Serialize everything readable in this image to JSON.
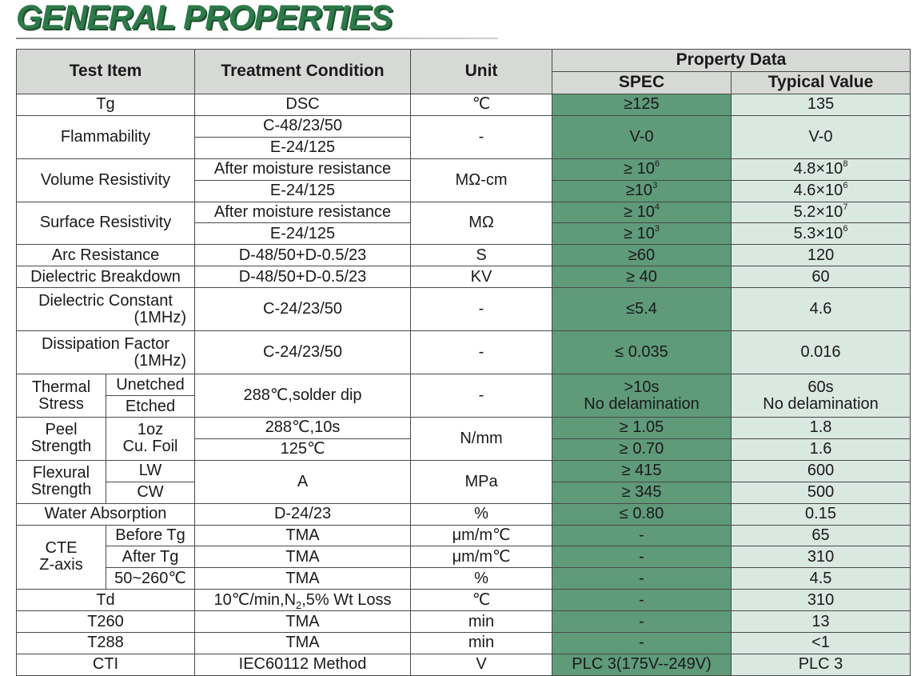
{
  "title": "GENERAL PROPERTIES",
  "colors": {
    "title": "#2d7a48",
    "spec_column": "#5f9a79",
    "typical_column": "#d9e8e1",
    "header_bg": "#d7d9d6"
  },
  "header": {
    "test_item": "Test Item",
    "treatment_condition": "Treatment Condition",
    "unit": "Unit",
    "property_data": "Property Data",
    "spec": "SPEC",
    "typical_value": "Typical Value"
  },
  "rows": {
    "tg": {
      "item": "Tg",
      "condition": "DSC",
      "unit": "℃",
      "spec": "≥125",
      "typical": "135"
    },
    "flammability": {
      "item": "Flammability",
      "condition_1": "C-48/23/50",
      "condition_2": "E-24/125",
      "unit": "-",
      "spec": "V-0",
      "typical": "V-0"
    },
    "volume_resistivity": {
      "item": "Volume Resistivity",
      "condition_1": "After moisture resistance",
      "condition_2": "E-24/125",
      "unit": "MΩ-cm",
      "spec_1_base": "≥ 10",
      "spec_1_exp": "6",
      "spec_2_base": "≥10",
      "spec_2_exp": "3",
      "typical_1_base": "4.8×10",
      "typical_1_exp": "8",
      "typical_2_base": "4.6×10",
      "typical_2_exp": "6"
    },
    "surface_resistivity": {
      "item": "Surface Resistivity",
      "condition_1": "After moisture resistance",
      "condition_2": "E-24/125",
      "unit": "MΩ",
      "spec_1_base": "≥ 10",
      "spec_1_exp": "4",
      "spec_2_base": "≥ 10",
      "spec_2_exp": "3",
      "typical_1_base": "5.2×10",
      "typical_1_exp": "7",
      "typical_2_base": "5.3×10",
      "typical_2_exp": "6"
    },
    "arc_resistance": {
      "item": "Arc Resistance",
      "condition": "D-48/50+D-0.5/23",
      "unit": "S",
      "spec": "≥60",
      "typical": "120"
    },
    "dielectric_breakdown": {
      "item": "Dielectric Breakdown",
      "condition": "D-48/50+D-0.5/23",
      "unit": "KV",
      "spec": "≥ 40",
      "typical": "60"
    },
    "dielectric_constant": {
      "item": "Dielectric Constant",
      "item_sub": "(1MHz)",
      "condition": "C-24/23/50",
      "unit": "-",
      "spec": "≤5.4",
      "typical": "4.6"
    },
    "dissipation_factor": {
      "item": "Dissipation Factor",
      "item_sub": "(1MHz)",
      "condition": "C-24/23/50",
      "unit": "-",
      "spec": "≤ 0.035",
      "typical": "0.016"
    },
    "thermal_stress": {
      "item_1": "Thermal",
      "item_2": "Stress",
      "sub_1": "Unetched",
      "sub_2": "Etched",
      "condition": "288℃,solder dip",
      "unit": "-",
      "spec_1": ">10s",
      "spec_2": "No delamination",
      "typical_1": "60s",
      "typical_2": "No delamination"
    },
    "peel_strength": {
      "item_1": "Peel",
      "item_2": "Strength",
      "sub_1": "1oz",
      "sub_2": "Cu. Foil",
      "condition_1": "288℃,10s",
      "condition_2": "125℃",
      "unit": "N/mm",
      "spec_1": "≥ 1.05",
      "spec_2": "≥ 0.70",
      "typical_1": "1.8",
      "typical_2": "1.6"
    },
    "flexural_strength": {
      "item_1": "Flexural",
      "item_2": "Strength",
      "sub_1": "LW",
      "sub_2": "CW",
      "condition": "A",
      "unit": "MPa",
      "spec_1": "≥ 415",
      "spec_2": "≥ 345",
      "typical_1": "600",
      "typical_2": "500"
    },
    "water_absorption": {
      "item": "Water Absorption",
      "condition": "D-24/23",
      "unit": "%",
      "spec": "≤ 0.80",
      "typical": "0.15"
    },
    "cte": {
      "item_1": "CTE",
      "item_2": "Z-axis",
      "sub_1": "Before Tg",
      "sub_2": "After Tg",
      "sub_3": "50~260℃",
      "condition_1": "TMA",
      "condition_2": "TMA",
      "condition_3": "TMA",
      "unit_1": "μm/m℃",
      "unit_2": "μm/m℃",
      "unit_3": "%",
      "spec_1": "-",
      "spec_2": "-",
      "spec_3": "-",
      "typical_1": "65",
      "typical_2": "310",
      "typical_3": "4.5"
    },
    "td": {
      "item": "Td",
      "condition_a": "10℃/min,N",
      "condition_sub": "2",
      "condition_b": ",5% Wt Loss",
      "unit": "℃",
      "spec": "-",
      "typical": "310"
    },
    "t260": {
      "item": "T260",
      "condition": "TMA",
      "unit": "min",
      "spec": "-",
      "typical": "13"
    },
    "t288": {
      "item": "T288",
      "condition": "TMA",
      "unit": "min",
      "spec": "-",
      "typical": "<1"
    },
    "cti": {
      "item": "CTI",
      "condition": "IEC60112 Method",
      "unit": "V",
      "spec": "PLC 3(175V--249V)",
      "typical": "PLC 3"
    }
  }
}
